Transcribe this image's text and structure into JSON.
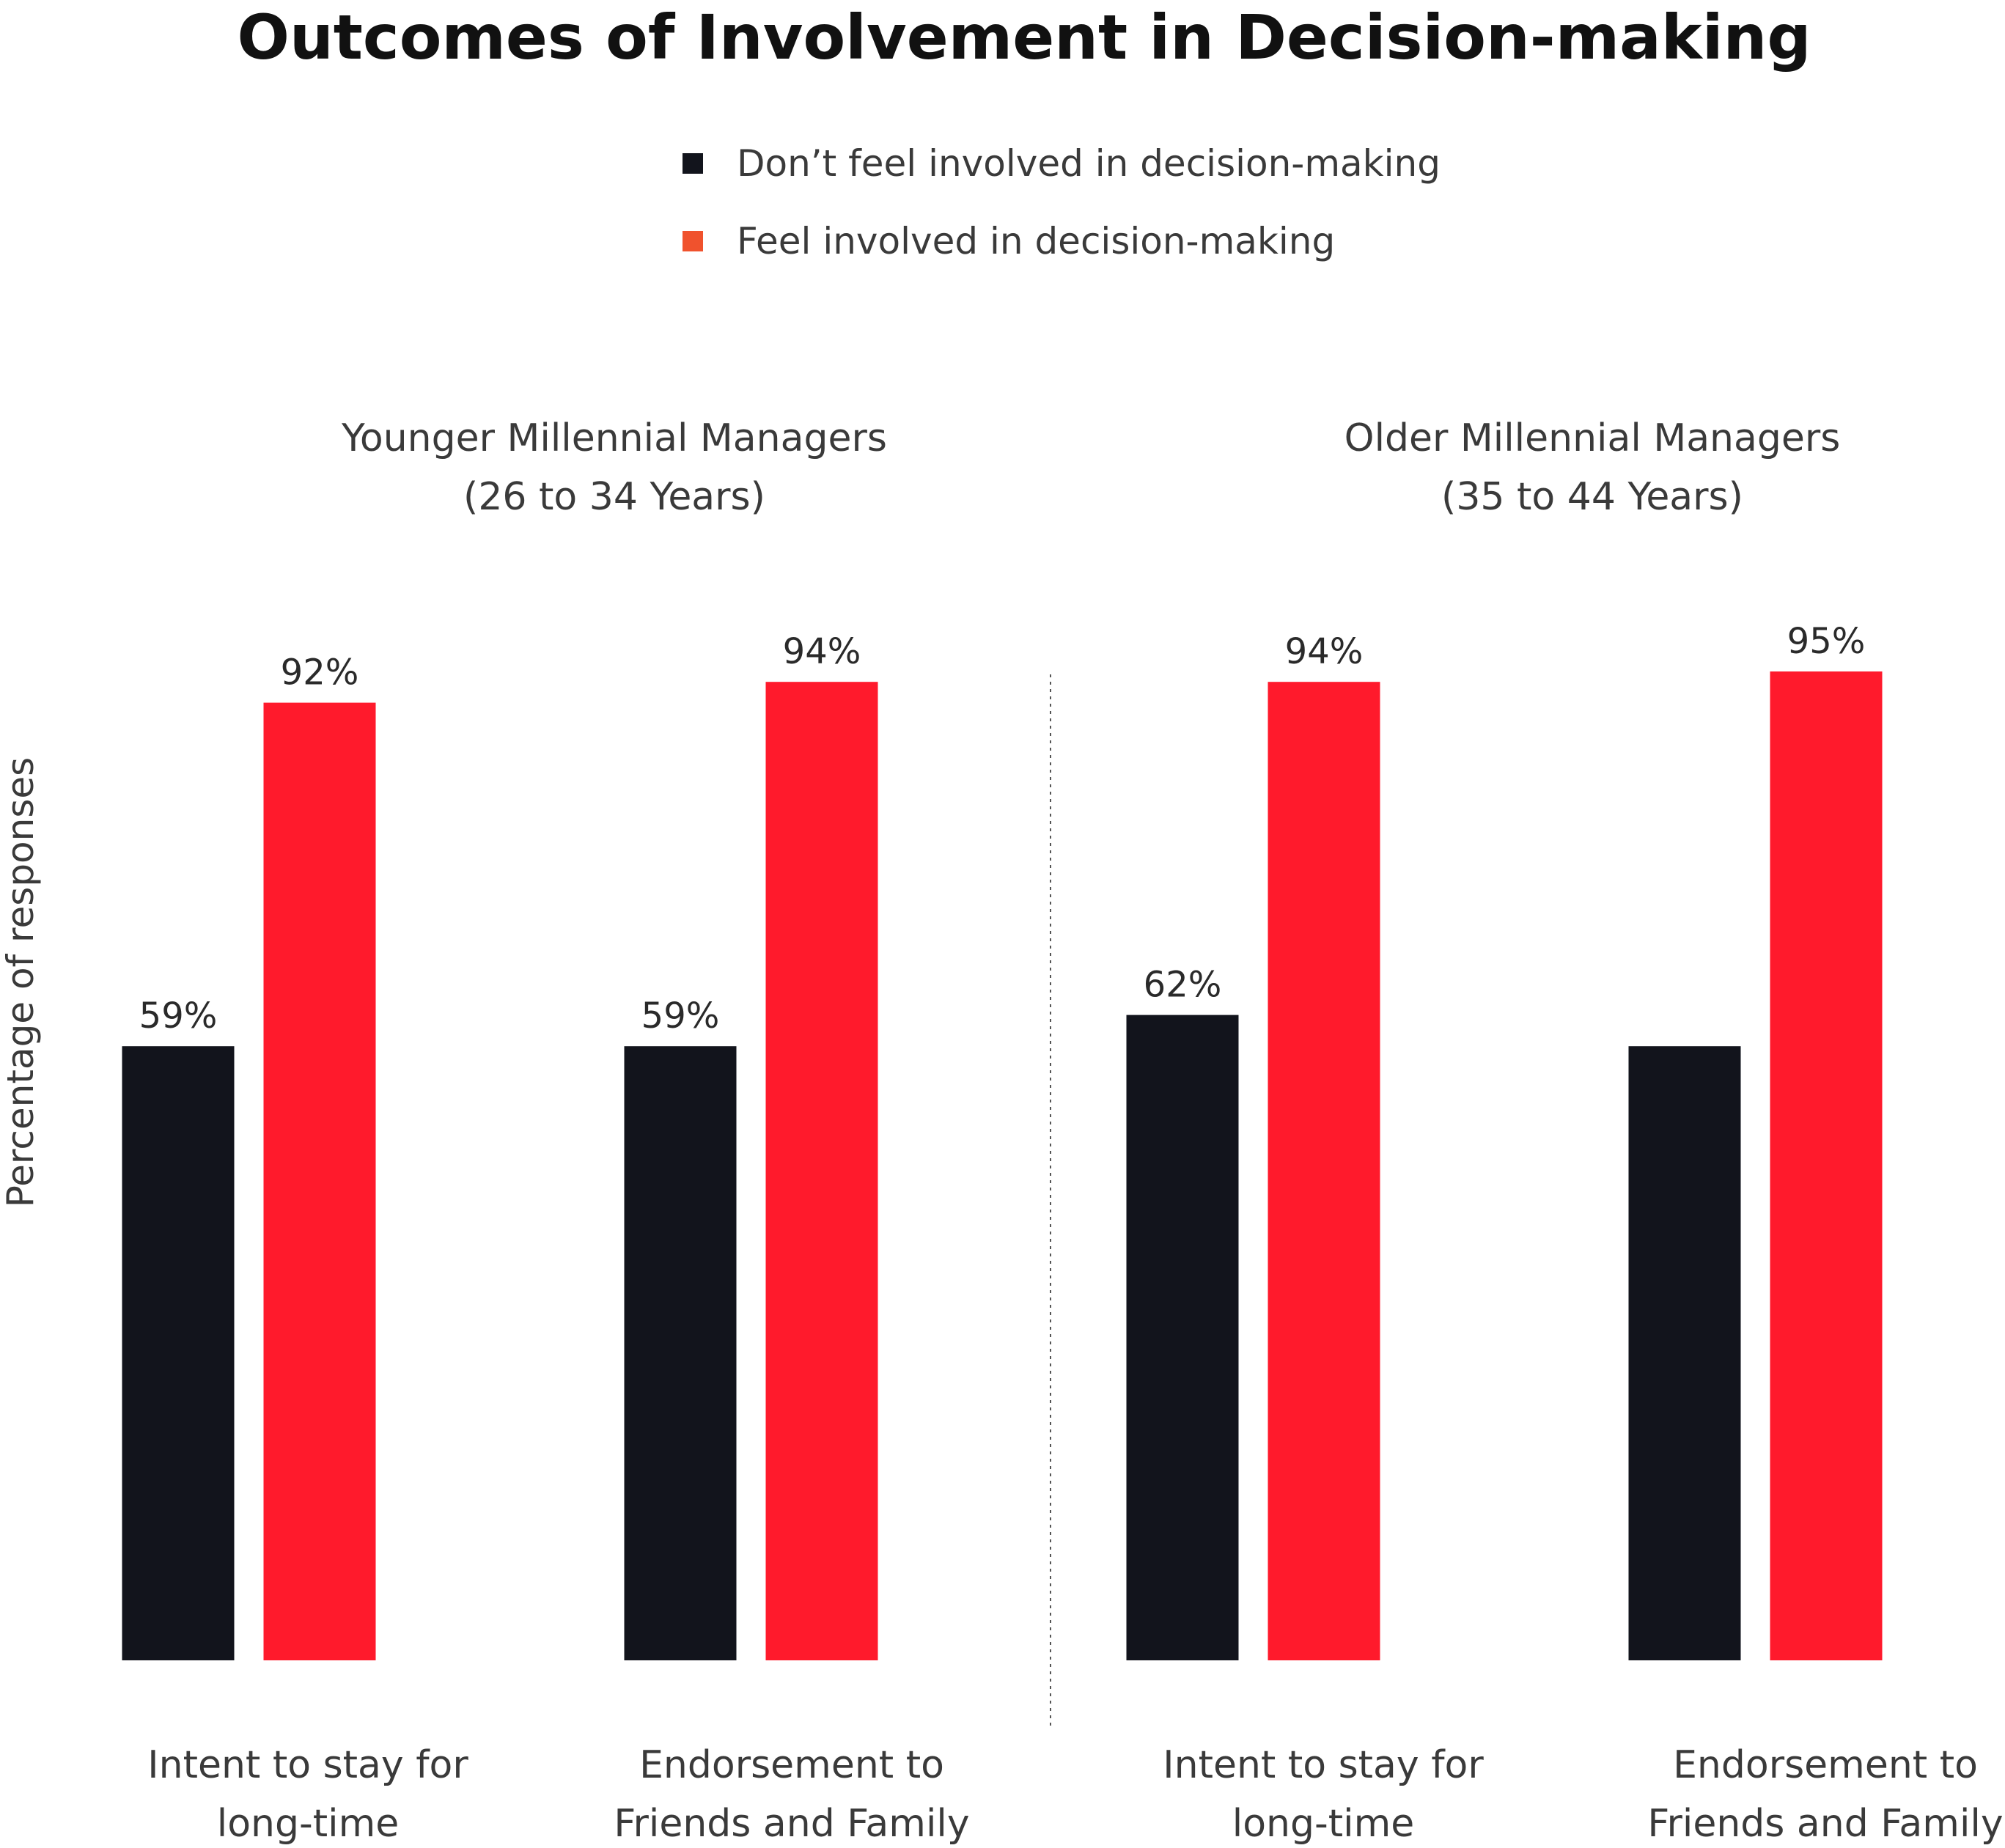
{
  "chart_data": {
    "type": "bar",
    "title": "Outcomes of Involvement in Decision-making",
    "ylabel": "Percentage of responses",
    "ylim": [
      0,
      100
    ],
    "grid": false,
    "legend_position": "top-center",
    "legend": [
      {
        "name": "Don’t feel involved in decision-making",
        "color": "#12141c"
      },
      {
        "name": "Feel involved in decision-making",
        "color": "#f0522d"
      }
    ],
    "series_colors": [
      "#12141c",
      "#ff1a2c"
    ],
    "groups": [
      {
        "label_lines": [
          "Younger Millennial Managers",
          "(26 to 34 Years)"
        ],
        "categories": [
          {
            "label_lines": [
              "Intent to stay for",
              "long-time"
            ],
            "values": [
              59,
              92
            ],
            "labels": [
              "59%",
              "92%"
            ]
          },
          {
            "label_lines": [
              "Endorsement to",
              "Friends and Family"
            ],
            "values": [
              59,
              94
            ],
            "labels": [
              "59%",
              "94%"
            ]
          }
        ]
      },
      {
        "label_lines": [
          "Older Millennial Managers",
          "(35 to 44 Years)"
        ],
        "categories": [
          {
            "label_lines": [
              "Intent to stay for",
              "long-time"
            ],
            "values": [
              62,
              94
            ],
            "labels": [
              "62%",
              "94%"
            ]
          },
          {
            "label_lines": [
              "Endorsement to",
              "Friends and Family"
            ],
            "values": [
              59,
              95
            ],
            "labels": [
              "",
              "95%"
            ]
          }
        ]
      }
    ]
  }
}
